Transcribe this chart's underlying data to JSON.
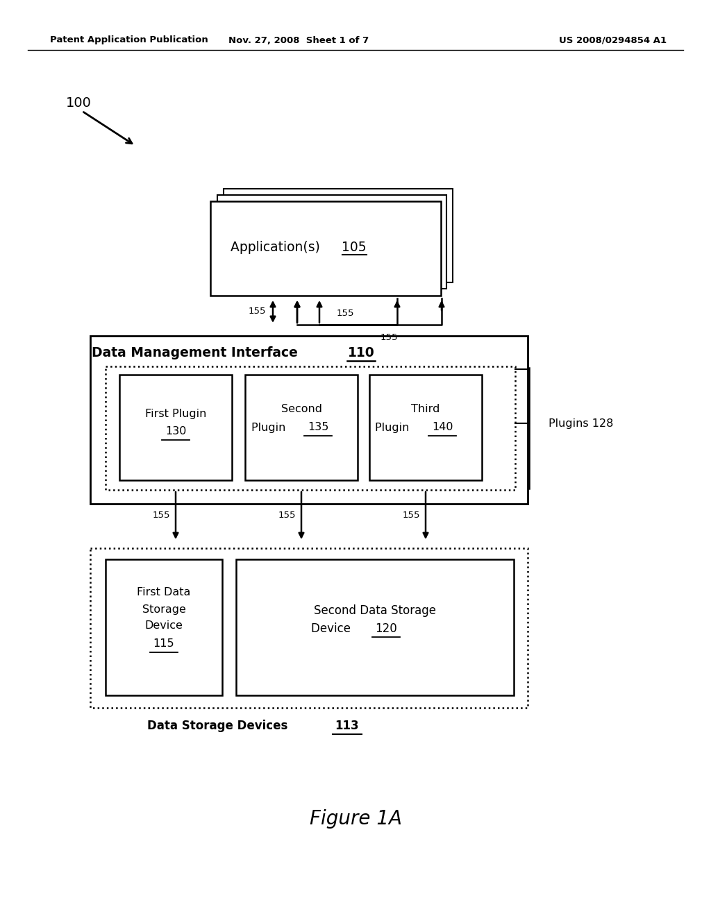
{
  "bg_color": "#ffffff",
  "header_left": "Patent Application Publication",
  "header_mid": "Nov. 27, 2008  Sheet 1 of 7",
  "header_right": "US 2008/0294854 A1",
  "figure_label": "Figure 1A"
}
